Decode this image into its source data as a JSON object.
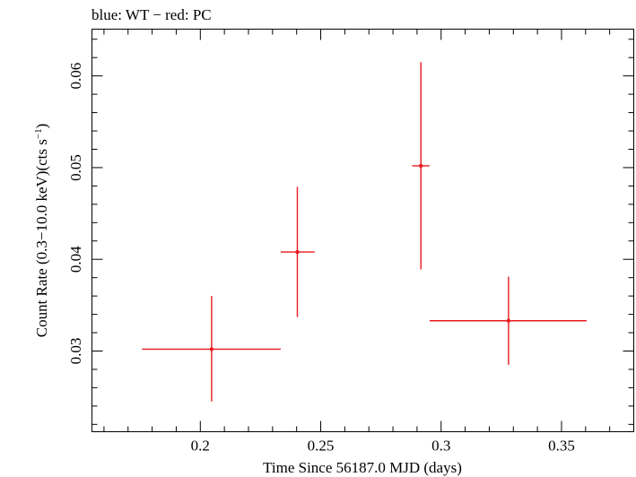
{
  "chart_data": {
    "type": "scatter",
    "title": "blue: WT − red: PC",
    "xlabel": "Time Since 56187.0 MJD (days)",
    "ylabel_main": "Count Rate (0.3−10.0 keV)(cts s",
    "ylabel_sup": "−1",
    "ylabel_end": ")",
    "xlim": [
      0.155,
      0.38
    ],
    "ylim": [
      0.0212,
      0.0651
    ],
    "x_ticks": [
      0.2,
      0.25,
      0.3,
      0.35
    ],
    "x_tick_labels": [
      "0.2",
      "0.25",
      "0.3",
      "0.35"
    ],
    "y_ticks": [
      0.03,
      0.04,
      0.05,
      0.06
    ],
    "y_tick_labels": [
      "0.03",
      "0.04",
      "0.05",
      "0.06"
    ],
    "grid": false,
    "series": [
      {
        "color": "#e8191c",
        "points": [
          {
            "x": 0.2047,
            "y": 0.0302,
            "x_lo": 0.1758,
            "x_hi": 0.2334,
            "y_lo": 0.0245,
            "y_hi": 0.036
          },
          {
            "x": 0.2403,
            "y": 0.0408,
            "x_lo": 0.2334,
            "x_hi": 0.2475,
            "y_lo": 0.0337,
            "y_hi": 0.0479
          },
          {
            "x": 0.2916,
            "y": 0.0502,
            "x_lo": 0.288,
            "x_hi": 0.2952,
            "y_lo": 0.0389,
            "y_hi": 0.0615
          },
          {
            "x": 0.328,
            "y": 0.0333,
            "x_lo": 0.2952,
            "x_hi": 0.3604,
            "y_lo": 0.0285,
            "y_hi": 0.0381
          }
        ]
      }
    ]
  }
}
